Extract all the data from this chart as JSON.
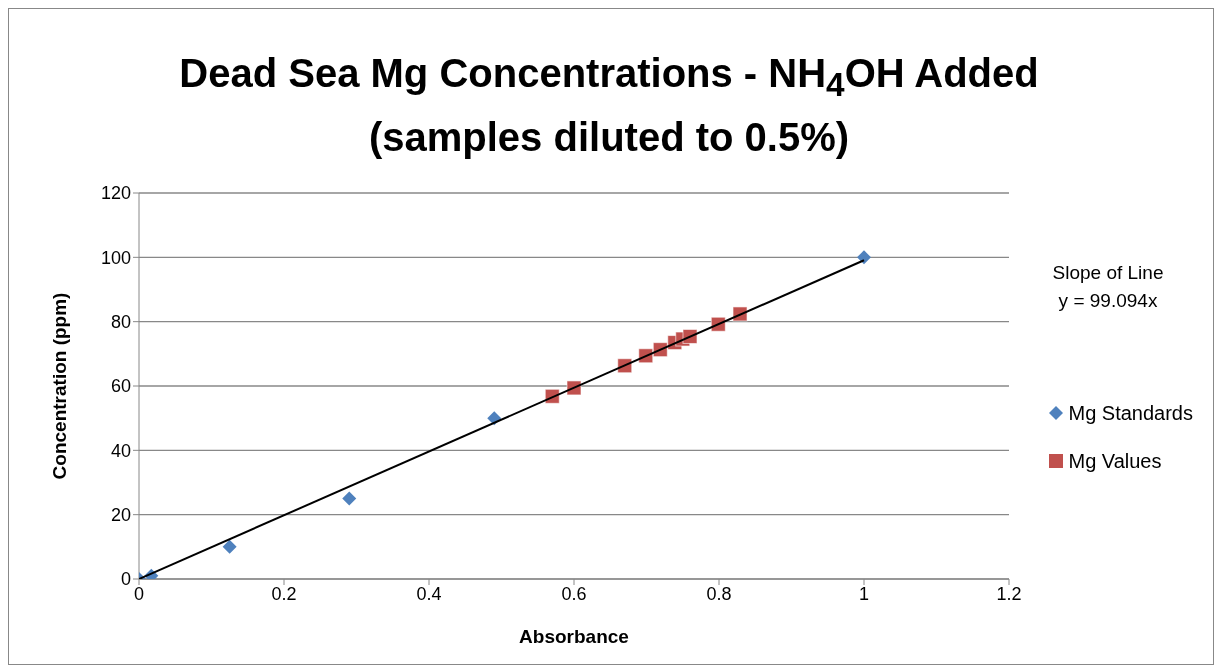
{
  "chart_data": {
    "type": "scatter",
    "title": "Dead Sea Mg Concentrations - NH$_{4}$OH Added (samples diluted to 0.5%)",
    "xlabel": "Absorbance",
    "ylabel": "Concentration (ppm)",
    "annotations": [
      "Slope of Line\ny = 99.094x"
    ],
    "series": [
      {
        "name": "Mg Standards",
        "color": "#4f81bd",
        "marker": "diamond",
        "x": [
          0,
          0.017,
          0.125,
          0.29,
          0.49,
          1
        ],
        "values": [
          0,
          1,
          10,
          25,
          50,
          100
        ]
      },
      {
        "name": "Mg Values",
        "color": "#c0504d",
        "marker": "square",
        "x": [
          0.57,
          0.6,
          0.67,
          0.699,
          0.719,
          0.739,
          0.75,
          0.76,
          0.799,
          0.829
        ],
        "values": [
          56.8,
          59.4,
          66.3,
          69.4,
          71.3,
          73.5,
          74.6,
          75.4,
          79.2,
          82.4
        ]
      },
      {
        "type": "line",
        "color": "#000000",
        "marker": "none",
        "x": [
          0,
          1
        ],
        "values": [
          0,
          99.1
        ]
      }
    ],
    "xlim": [
      0,
      1.2
    ],
    "xticks": [
      0,
      0.2,
      0.4,
      0.6,
      0.8,
      1,
      1.2
    ],
    "ylim": [
      0,
      120
    ],
    "yticks": [
      0,
      20,
      40,
      60,
      80,
      100,
      120
    ],
    "grid": "y",
    "legend": "right"
  }
}
